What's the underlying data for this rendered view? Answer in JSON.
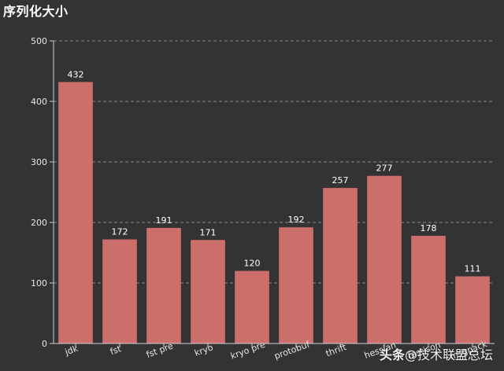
{
  "chart_data": {
    "type": "bar",
    "title": "序列化大小",
    "xlabel": "",
    "ylabel": "",
    "categories": [
      "jdk",
      "fst",
      "fst pre",
      "kryo",
      "kryo pre",
      "protobuf",
      "thrift",
      "hessian",
      "fastjson",
      "msgpack"
    ],
    "values": [
      432,
      172,
      191,
      171,
      120,
      192,
      257,
      277,
      178,
      111
    ],
    "ylim": [
      0,
      500
    ],
    "yticks": [
      0,
      100,
      200,
      300,
      400,
      500
    ],
    "grid": true,
    "legend": "none",
    "bar_color": "#CC6F6A",
    "background": "#333333"
  },
  "watermark": {
    "brand": "头条",
    "handle": "@技术联盟总坛"
  }
}
